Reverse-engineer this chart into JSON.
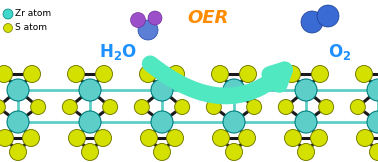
{
  "bg_color": "#ffffff",
  "zr_color": "#5ECEC8",
  "s_color": "#D4E000",
  "bond_color_dark": "#1a1a1a",
  "zr_legend_color": "#40D8C8",
  "s_legend_color": "#D4E000",
  "legend_zr_label": "Zr atom",
  "legend_s_label": "S atom",
  "oer_text": "OER",
  "oer_color": "#FF8C00",
  "h2o_color": "#1E90FF",
  "o2_color": "#1E90FF",
  "water_o_color": "#5B8FD8",
  "water_h_color": "#9B4FC8",
  "o2_mol_color": "#3A6AD4",
  "arrow_color": "#50E8C0",
  "n_units": 5
}
